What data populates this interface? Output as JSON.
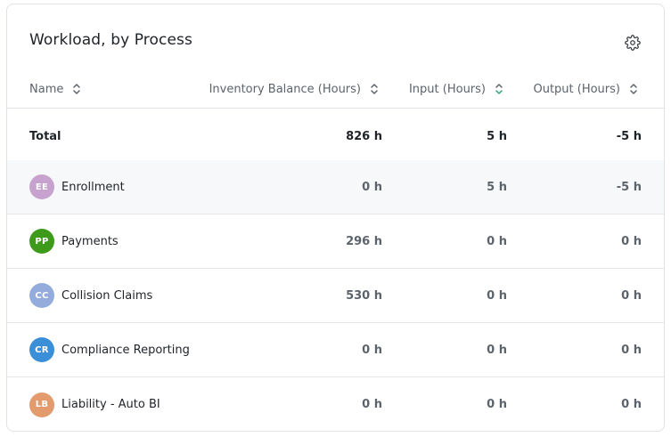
{
  "widget": {
    "title": "Workload, by Process",
    "settings_icon": "gear-icon"
  },
  "columns": {
    "name": "Name",
    "inventory": "Inventory Balance (Hours)",
    "input": "Input (Hours)",
    "output": "Output (Hours)",
    "sort_icon_color": "#5c636b",
    "active_sort_color": "#2ea77a"
  },
  "total": {
    "label": "Total",
    "inventory": "826 h",
    "input": "5 h",
    "output": "-5 h"
  },
  "rows": [
    {
      "initials": "EE",
      "color": "#c8a2cf",
      "name": "Enrollment",
      "inventory": "0 h",
      "input": "5 h",
      "output": "-5 h"
    },
    {
      "initials": "PP",
      "color": "#3d9a1a",
      "name": "Payments",
      "inventory": "296 h",
      "input": "0 h",
      "output": "0 h"
    },
    {
      "initials": "CC",
      "color": "#93acdc",
      "name": "Collision Claims",
      "inventory": "530 h",
      "input": "0 h",
      "output": "0 h"
    },
    {
      "initials": "CR",
      "color": "#3b8fd8",
      "name": "Compliance Reporting",
      "inventory": "0 h",
      "input": "0 h",
      "output": "0 h"
    },
    {
      "initials": "LB",
      "color": "#e39a6d",
      "name": "Liability - Auto BI",
      "inventory": "0 h",
      "input": "0 h",
      "output": "0 h"
    }
  ]
}
